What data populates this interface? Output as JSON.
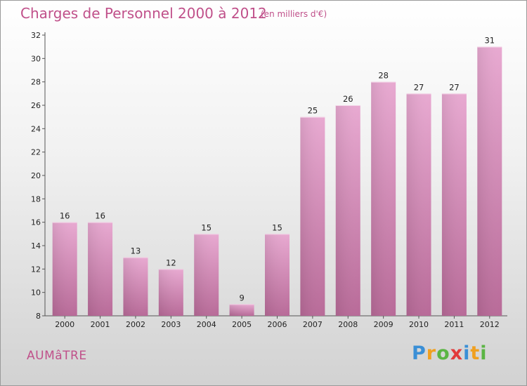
{
  "title": "Charges de Personnel 2000 à 2012",
  "subtitle": "(en milliers d'€)",
  "town": "AUMâTRE",
  "logo": {
    "letters": [
      "P",
      "r",
      "o",
      "x",
      "i",
      "t",
      "i"
    ],
    "colors": [
      "#3a8fd6",
      "#f0a020",
      "#5bb544",
      "#e23a3a",
      "#3a8fd6",
      "#f0a020",
      "#5bb544"
    ]
  },
  "colors": {
    "bar": "#c76ea3",
    "bar_light": "#e8a9d1",
    "text_accent": "#c0508a"
  },
  "chart_data": {
    "type": "bar",
    "categories": [
      "2000",
      "2001",
      "2002",
      "2003",
      "2004",
      "2005",
      "2006",
      "2007",
      "2008",
      "2009",
      "2010",
      "2011",
      "2012"
    ],
    "values": [
      16,
      16,
      13,
      12,
      15,
      9,
      15,
      25,
      26,
      28,
      27,
      27,
      31
    ],
    "ylim": [
      8,
      32
    ],
    "yticks": [
      8,
      10,
      12,
      14,
      16,
      18,
      20,
      22,
      24,
      26,
      28,
      30,
      32
    ],
    "grid": false
  }
}
